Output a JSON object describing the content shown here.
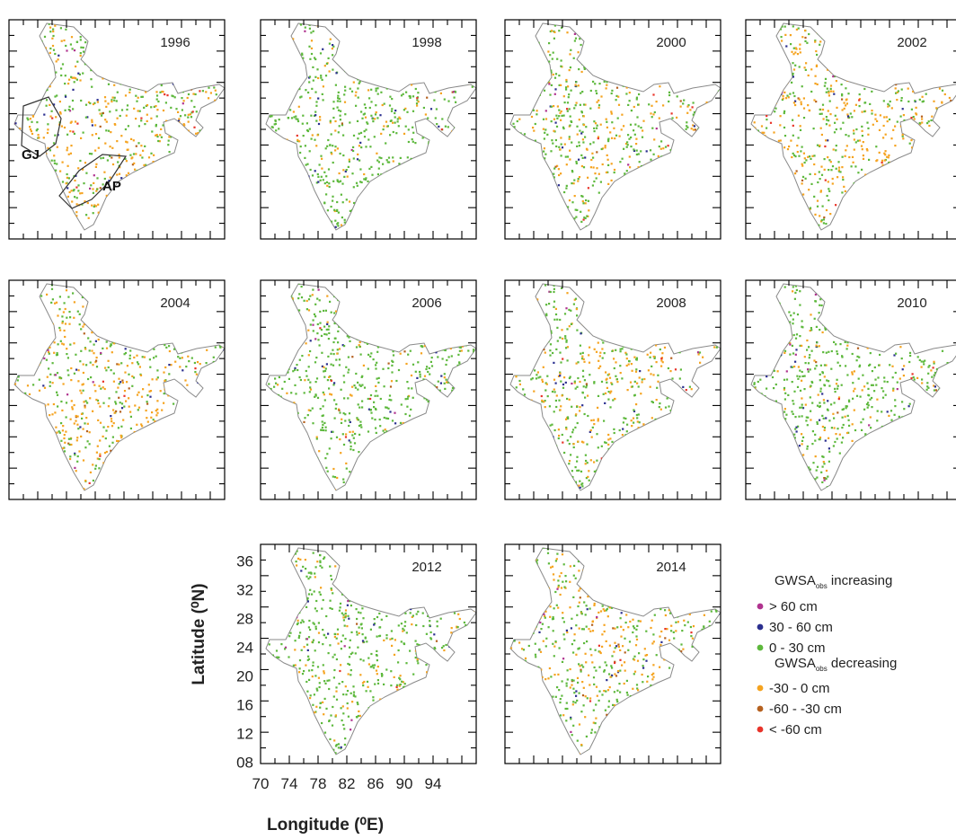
{
  "panels": [
    {
      "year": "1996",
      "regions": [
        {
          "label": "GJ"
        },
        {
          "label": "AP"
        }
      ],
      "trend": "decreasing-south"
    },
    {
      "year": "1998",
      "regions": [],
      "trend": "mostly-increasing"
    },
    {
      "year": "2000",
      "regions": [],
      "trend": "mixed"
    },
    {
      "year": "2002",
      "regions": [],
      "trend": "decreasing"
    },
    {
      "year": "2004",
      "regions": [],
      "trend": "decreasing-south"
    },
    {
      "year": "2006",
      "regions": [],
      "trend": "mostly-increasing"
    },
    {
      "year": "2008",
      "regions": [],
      "trend": "mixed"
    },
    {
      "year": "2010",
      "regions": [],
      "trend": "mostly-increasing"
    },
    {
      "year": "2012",
      "regions": [],
      "trend": "mostly-increasing"
    },
    {
      "year": "2014",
      "regions": [],
      "trend": "mixed"
    }
  ],
  "axes": {
    "xlabel": "Longitude (⁰E)",
    "ylabel": "Latitude (⁰N)",
    "xticks": [
      "70",
      "74",
      "78",
      "82",
      "86",
      "90",
      "94"
    ],
    "yticks": [
      "36",
      "32",
      "28",
      "24",
      "20",
      "16",
      "12",
      "08"
    ]
  },
  "legend": {
    "increasing": {
      "heading_main": "GWSA",
      "heading_sub": "obs",
      "heading_rest": " increasing",
      "items": [
        {
          "label": "> 60 cm",
          "color": "#b0338f"
        },
        {
          "label": "30 - 60 cm",
          "color": "#2b2f8f"
        },
        {
          "label": "0 - 30 cm",
          "color": "#5db83c"
        }
      ]
    },
    "decreasing": {
      "heading_main": "GWSA",
      "heading_sub": "obs",
      "heading_rest": " decreasing",
      "items": [
        {
          "label": "-30 - 0 cm",
          "color": "#f5a31f"
        },
        {
          "label": "-60 - -30 cm",
          "color": "#b5611f"
        },
        {
          "label": "< -60 cm",
          "color": "#e8342a"
        }
      ]
    }
  }
}
